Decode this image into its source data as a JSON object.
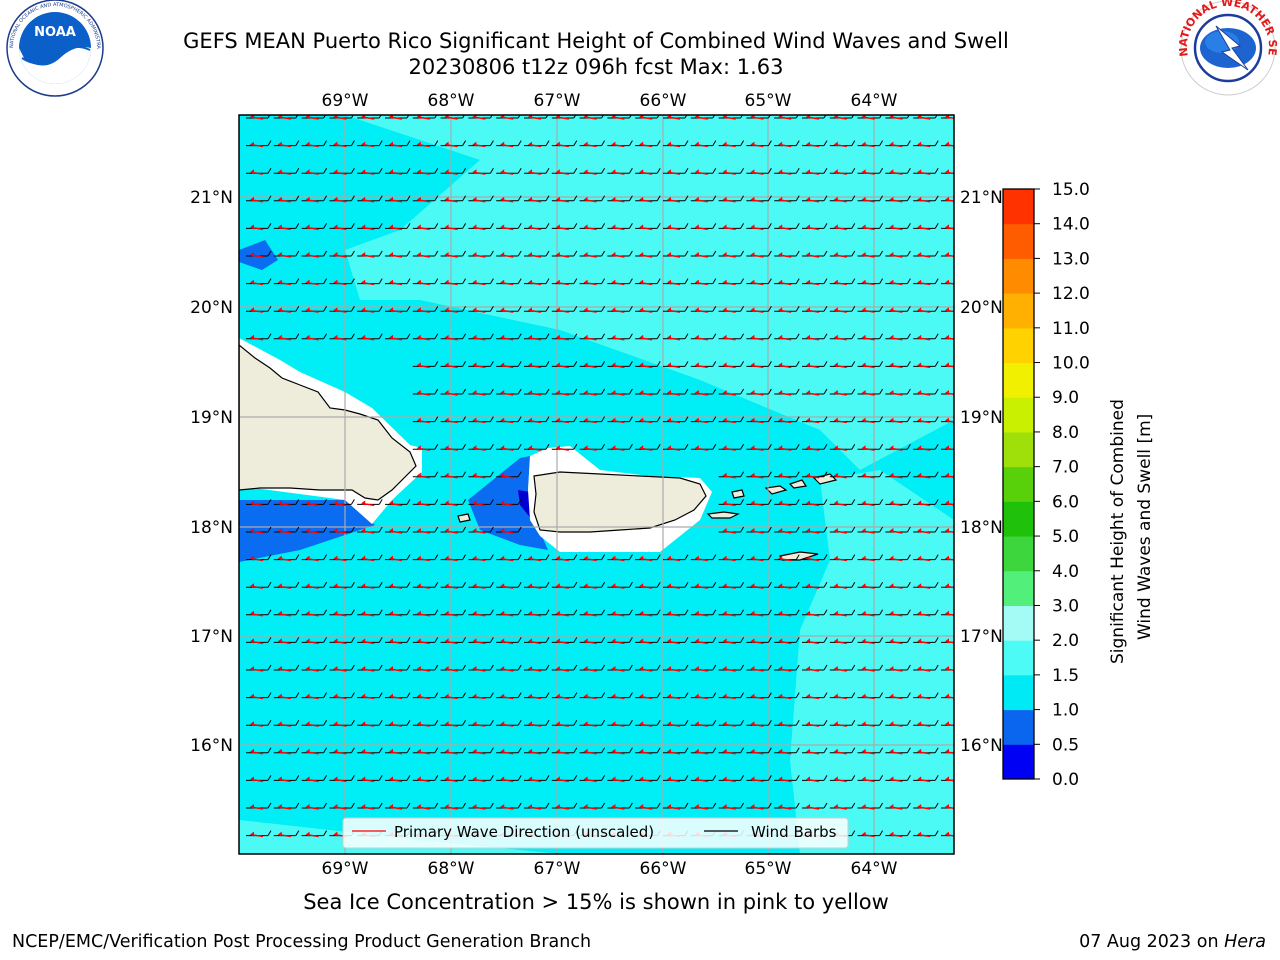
{
  "title_line1": "GEFS MEAN Puerto Rico Significant Height of Combined Wind Waves and Swell",
  "title_line2": "20230806 t12z 096h fcst   Max: 1.63",
  "lon_labels": [
    "69°W",
    "68°W",
    "67°W",
    "66°W",
    "65°W",
    "64°W"
  ],
  "lat_labels": [
    "21°N",
    "20°N",
    "19°N",
    "18°N",
    "17°N",
    "16°N"
  ],
  "legend": {
    "wave_label": "Primary Wave Direction (unscaled)",
    "barb_label": "Wind Barbs"
  },
  "colorbar": {
    "title_line1": "Significant Height of Combined",
    "title_line2": "Wind Waves and Swell [m]",
    "ticks": [
      "0.0",
      "0.5",
      "1.0",
      "1.5",
      "2.0",
      "3.0",
      "4.0",
      "5.0",
      "6.0",
      "7.0",
      "8.0",
      "9.0",
      "10.0",
      "11.0",
      "12.0",
      "13.0",
      "14.0",
      "15.0"
    ],
    "colors": [
      "#0000f5",
      "#0a66ee",
      "#00eaf5",
      "#4cfbf5",
      "#a4fbf5",
      "#52f07a",
      "#3dd63d",
      "#1fc10a",
      "#58d00a",
      "#a0e00a",
      "#c8f000",
      "#f0f000",
      "#ffd200",
      "#ffb000",
      "#ff8c00",
      "#ff5c00",
      "#ff3200",
      "#ff0000"
    ]
  },
  "sea_ice_note": "Sea Ice Concentration > 15% is shown in pink to yellow",
  "footer_left": "NCEP/EMC/Verification Post Processing Product Generation Branch",
  "footer_date": "07 Aug 2023 on",
  "footer_host": "Hera",
  "logos": {
    "noaa_text": "NOAA",
    "noaa_ring": "NATIONAL OCEANIC AND ATMOSPHERIC ADMINISTRATION · U.S. DEPARTMENT OF COMMERCE",
    "nws_ring": "NATIONAL WEATHER SERVICE"
  },
  "map_colors": {
    "ocean_base": "#00eef5",
    "ocean_light": "#4cfaf5",
    "ocean_dark": "#0a6cf0",
    "ocean_deep": "#0000d0",
    "land": "#eeeddc",
    "wave_arrow": "#ff0000",
    "barb": "#000000",
    "grid": "#aaaaaa"
  }
}
